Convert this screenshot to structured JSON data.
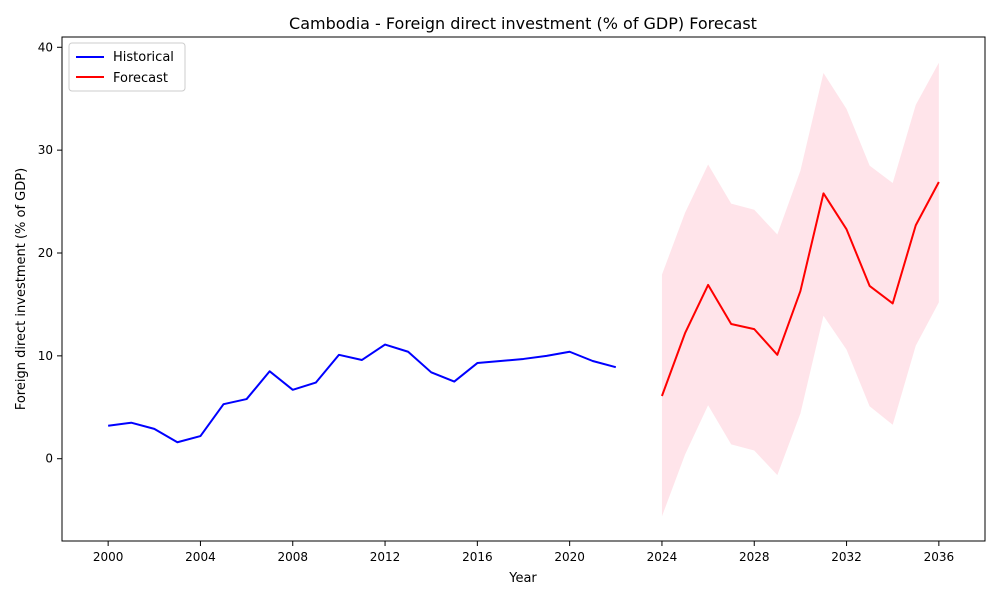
{
  "chart_data": {
    "type": "line",
    "title": "Cambodia - Foreign direct investment (% of GDP) Forecast",
    "xlabel": "Year",
    "ylabel": "Foreign direct investment (% of GDP)",
    "xlim": [
      1998,
      2038
    ],
    "ylim": [
      -8,
      41
    ],
    "x_ticks": [
      2000,
      2004,
      2008,
      2012,
      2016,
      2020,
      2024,
      2028,
      2032,
      2036
    ],
    "y_ticks": [
      0,
      10,
      20,
      30,
      40
    ],
    "grid": false,
    "legend_position": "top-left",
    "series": [
      {
        "name": "Historical",
        "color": "#0000ff",
        "x": [
          2000,
          2001,
          2002,
          2003,
          2004,
          2005,
          2006,
          2007,
          2008,
          2009,
          2010,
          2011,
          2012,
          2013,
          2014,
          2015,
          2016,
          2017,
          2018,
          2019,
          2020,
          2021,
          2022
        ],
        "values": [
          3.2,
          3.5,
          2.9,
          1.6,
          2.2,
          5.3,
          5.8,
          8.5,
          6.7,
          7.4,
          10.1,
          9.6,
          11.1,
          10.4,
          8.4,
          7.5,
          9.3,
          9.5,
          9.7,
          10.0,
          10.4,
          9.5,
          8.9
        ]
      },
      {
        "name": "Forecast",
        "color": "#ff0000",
        "x": [
          2024,
          2025,
          2026,
          2027,
          2028,
          2029,
          2030,
          2031,
          2032,
          2033,
          2034,
          2035,
          2036
        ],
        "values": [
          6.1,
          12.2,
          16.9,
          13.1,
          12.6,
          10.1,
          16.3,
          25.8,
          22.3,
          16.8,
          15.1,
          22.7,
          26.9
        ],
        "lower": [
          -5.6,
          0.4,
          5.2,
          1.4,
          0.8,
          -1.6,
          4.4,
          13.9,
          10.6,
          5.1,
          3.3,
          11.0,
          15.2
        ],
        "upper": [
          17.9,
          23.9,
          28.6,
          24.8,
          24.2,
          21.8,
          28.0,
          37.5,
          34.0,
          28.5,
          26.8,
          34.4,
          38.5
        ],
        "band_color": "#ffe4ea"
      }
    ]
  }
}
